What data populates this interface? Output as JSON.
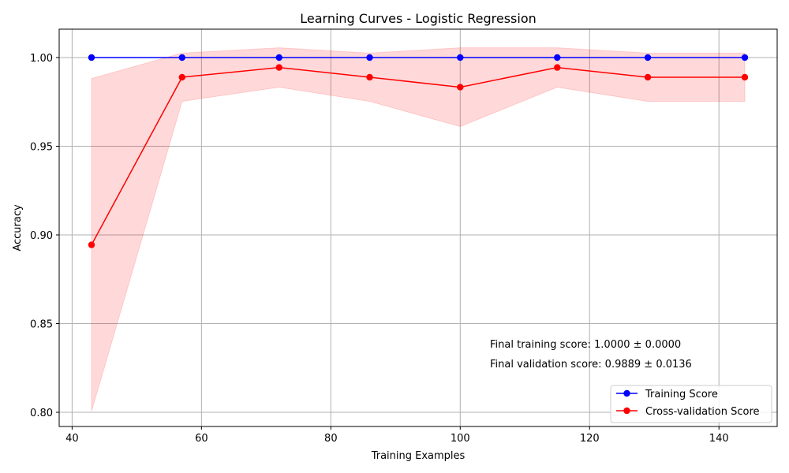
{
  "chart_data": {
    "type": "line",
    "title": "Learning Curves - Logistic Regression",
    "xlabel": "Training Examples",
    "ylabel": "Accuracy",
    "xlim": [
      38,
      149
    ],
    "ylim": [
      0.792,
      1.016
    ],
    "xticks": [
      40,
      60,
      80,
      100,
      120,
      140
    ],
    "yticks": [
      0.8,
      0.85,
      0.9,
      0.95,
      1.0
    ],
    "xtick_labels": [
      "40",
      "60",
      "80",
      "100",
      "120",
      "140"
    ],
    "ytick_labels": [
      "0.80",
      "0.85",
      "0.90",
      "0.95",
      "1.00"
    ],
    "grid": true,
    "legend_position": "lower right",
    "x": [
      43,
      57,
      72,
      86,
      100,
      115,
      129,
      144
    ],
    "series": [
      {
        "name": "Training Score",
        "color": "#0000ff",
        "marker": "circle",
        "values": [
          1.0,
          1.0,
          1.0,
          1.0,
          1.0,
          1.0,
          1.0,
          1.0
        ]
      },
      {
        "name": "Cross-validation Score",
        "color": "#ff0000",
        "marker": "circle",
        "values": [
          0.8944,
          0.9889,
          0.9944,
          0.9889,
          0.9833,
          0.9944,
          0.9889,
          0.9889
        ],
        "band_color": "#ff0000",
        "band_upper": [
          0.9882,
          1.0025,
          1.0055,
          1.0025,
          1.0055,
          1.0055,
          1.0025,
          1.0025
        ],
        "band_lower": [
          0.8006,
          0.9753,
          0.9833,
          0.9753,
          0.9611,
          0.9833,
          0.9753,
          0.9753
        ]
      }
    ],
    "annotations": [
      "Final training score: 1.0000 ± 0.0000",
      "Final validation score: 0.9889 ± 0.0136"
    ]
  }
}
